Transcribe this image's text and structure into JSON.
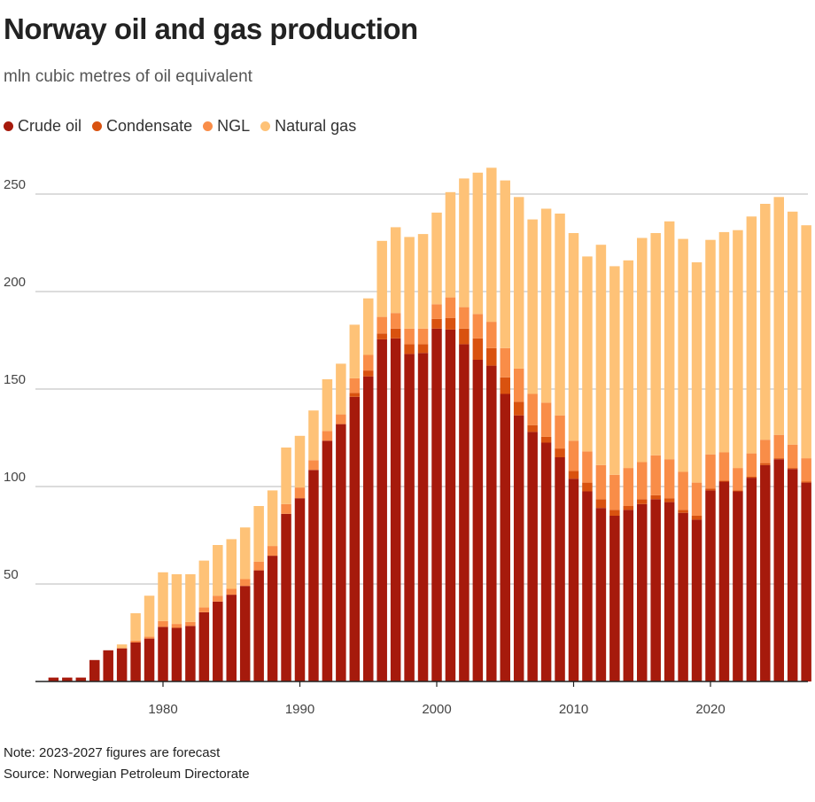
{
  "chart_data": {
    "type": "bar",
    "stacked": true,
    "title": "Norway oil and gas production",
    "subtitle": "mln cubic metres of oil equivalent",
    "note": "Note: 2023-2027 figures are forecast",
    "source": "Source: Norwegian Petroleum Directorate",
    "ylim": [
      0,
      265
    ],
    "yticks": [
      50,
      100,
      150,
      200,
      250
    ],
    "xticks": [
      1980,
      1990,
      2000,
      2010,
      2020
    ],
    "grid": true,
    "legend_placement": "top-left",
    "categories": [
      1972,
      1973,
      1974,
      1975,
      1976,
      1977,
      1978,
      1979,
      1980,
      1981,
      1982,
      1983,
      1984,
      1985,
      1986,
      1987,
      1988,
      1989,
      1990,
      1991,
      1992,
      1993,
      1994,
      1995,
      1996,
      1997,
      1998,
      1999,
      2000,
      2001,
      2002,
      2003,
      2004,
      2005,
      2006,
      2007,
      2008,
      2009,
      2010,
      2011,
      2012,
      2013,
      2014,
      2015,
      2016,
      2017,
      2018,
      2019,
      2020,
      2021,
      2022,
      2023,
      2024,
      2025,
      2026,
      2027
    ],
    "series": [
      {
        "name": "Crude oil",
        "color": "#a61a0c",
        "values": [
          2,
          2,
          2,
          11,
          16,
          17,
          20,
          22,
          28,
          27.5,
          28.5,
          35.5,
          41,
          44.5,
          49,
          57,
          64.5,
          86,
          94,
          108.5,
          123.5,
          132,
          146,
          156.5,
          175.5,
          176,
          168,
          168.5,
          181,
          180.5,
          173,
          165,
          162,
          147.5,
          136.5,
          128,
          122.5,
          115,
          104,
          97.5,
          89,
          85,
          88,
          91,
          93.5,
          92,
          86.5,
          83,
          98,
          102.5,
          97.5,
          104.5,
          111,
          114,
          109,
          102
        ]
      },
      {
        "name": "Condensate",
        "color": "#d9520f",
        "values": [
          0,
          0,
          0,
          0,
          0,
          0,
          0,
          0,
          0,
          0,
          0,
          0,
          0,
          0,
          0,
          0,
          0,
          0,
          0,
          0,
          0,
          0,
          2,
          3,
          3,
          5,
          5,
          4.5,
          5,
          6,
          8,
          11,
          9,
          8.5,
          7,
          3.5,
          3,
          4.5,
          4,
          4.5,
          4.5,
          3,
          2,
          2.5,
          2,
          2,
          1.5,
          2,
          1,
          0.5,
          0.5,
          0.5,
          1,
          0.5,
          0.5,
          0.5
        ]
      },
      {
        "name": "NGL",
        "color": "#f98d48",
        "values": [
          0,
          0,
          0,
          0,
          0,
          0,
          1,
          1,
          3,
          2,
          2,
          2.5,
          3,
          3,
          3.5,
          4.5,
          5,
          5,
          5.5,
          5,
          5,
          5,
          7.5,
          8,
          8.5,
          8,
          8,
          8,
          7.5,
          10.5,
          11,
          12.5,
          13.5,
          15,
          17,
          16,
          17.5,
          17,
          15.5,
          16,
          17.5,
          18,
          19.5,
          19,
          20.5,
          20,
          19.5,
          17,
          17.5,
          14.5,
          11.5,
          12,
          12,
          12,
          12,
          12
        ]
      },
      {
        "name": "Natural gas",
        "color": "#fec277",
        "values": [
          0,
          0,
          0,
          0,
          0,
          2,
          14,
          21,
          25,
          25.5,
          24.5,
          24,
          26,
          25.5,
          26.5,
          28.5,
          28.5,
          29,
          26.5,
          25.5,
          26.5,
          26,
          27.5,
          29,
          39,
          44,
          47,
          48.5,
          47,
          54,
          66,
          72.5,
          79,
          86,
          88,
          89.5,
          99.5,
          103.5,
          106.5,
          100,
          113,
          107,
          106.5,
          115,
          114,
          122,
          119.5,
          113,
          110,
          113,
          122,
          121.5,
          121,
          122,
          119.5,
          119.5
        ]
      }
    ]
  }
}
